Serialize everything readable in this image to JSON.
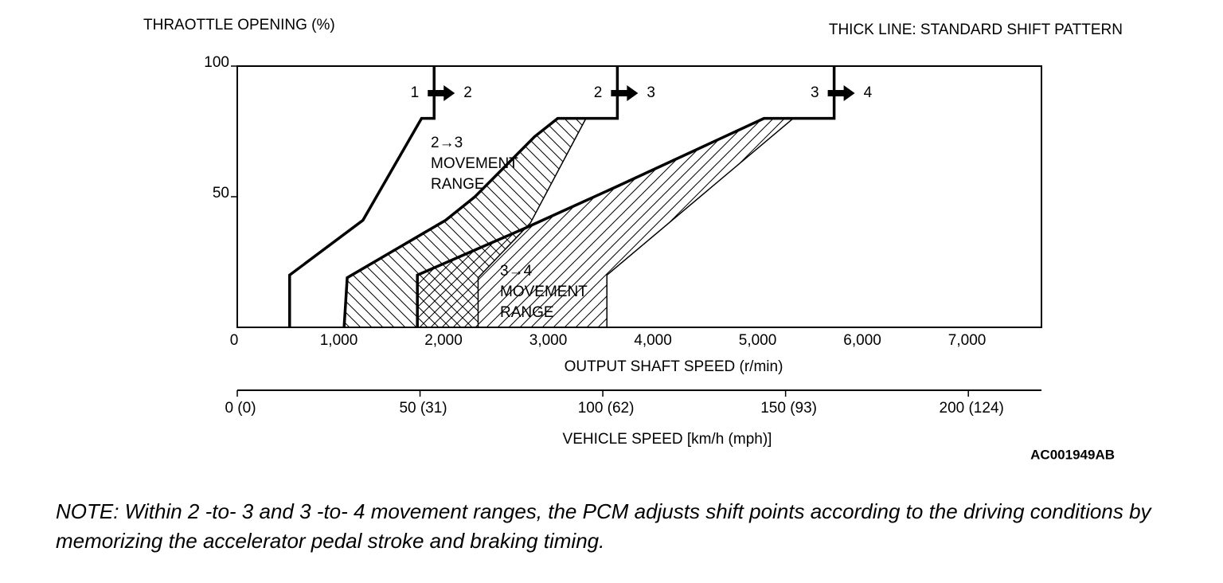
{
  "chart_data": {
    "type": "line",
    "y_label": "THRAOTTLE OPENING (%)",
    "note_top": "THICK LINE: STANDARD SHIFT PATTERN",
    "x_label": "OUTPUT SHAFT SPEED (r/min)",
    "x2_label": "VEHICLE SPEED [km/h (mph)]",
    "code": "AC001949AB",
    "xlim": [
      0,
      7680
    ],
    "ylim": [
      0,
      100
    ],
    "xticks": [
      0,
      {
        "value": 1000,
        "label": "1,000"
      },
      {
        "value": 2000,
        "label": "2,000"
      },
      {
        "value": 3000,
        "label": "3,000"
      },
      {
        "value": 4000,
        "label": "4,000"
      },
      {
        "value": 5000,
        "label": "5,000"
      },
      {
        "value": 6000,
        "label": "6,000"
      },
      {
        "value": 7000,
        "label": "7,000"
      }
    ],
    "yticks": [
      50,
      100
    ],
    "x2lim": [
      0,
      220
    ],
    "x2ticks": [
      {
        "value": 0,
        "label": "0 (0)"
      },
      {
        "value": 50,
        "label": "50 (31)"
      },
      {
        "value": 100,
        "label": "100 (62)"
      },
      {
        "value": 150,
        "label": "150 (93)"
      },
      {
        "value": 200,
        "label": "200 (124)"
      }
    ],
    "series": [
      {
        "thick": true,
        "color": "#000000",
        "x": [
          500,
          500,
          1200,
          1760,
          1880,
          1880
        ],
        "values": [
          0,
          20,
          41,
          80,
          80,
          100
        ]
      },
      {
        "thick": true,
        "color": "#000000",
        "x": [
          1020,
          1050,
          1990,
          2270,
          2840,
          3060,
          3630,
          3630
        ],
        "values": [
          0,
          19,
          41,
          50,
          73,
          80,
          80,
          100
        ]
      },
      {
        "thick": false,
        "color": "#000000",
        "x": [
          2300,
          2300,
          2800,
          3330
        ],
        "values": [
          0,
          19,
          40,
          80
        ]
      },
      {
        "thick": true,
        "color": "#000000",
        "x": [
          1720,
          1720,
          2750,
          3630,
          5030,
          5700,
          5700
        ],
        "values": [
          0,
          20,
          38,
          54,
          80,
          80,
          100
        ]
      },
      {
        "thick": false,
        "color": "#000000",
        "x": [
          3530,
          3530,
          5310
        ],
        "values": [
          0,
          20,
          80
        ]
      }
    ],
    "shift_labels": [
      [
        "1",
        "2"
      ],
      [
        "2",
        "3"
      ],
      [
        "3",
        "4"
      ]
    ],
    "range_labels": [
      [
        "2→3",
        "MOVEMENT",
        "RANGE"
      ],
      [
        "3→4",
        "MOVEMENT",
        "RANGE"
      ]
    ],
    "note": "NOTE: Within 2 -to- 3 and 3 -to- 4 movement ranges, the PCM adjusts shift points according to the driving conditions by memorizing the accelerator pedal stroke and braking timing."
  }
}
